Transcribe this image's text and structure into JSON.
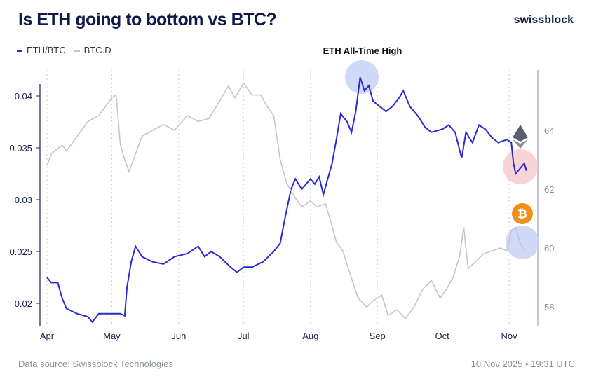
{
  "header": {
    "title": "Is ETH going to bottom vs BTC?",
    "brand": "swissblock"
  },
  "footer": {
    "source": "Data source: Swissblock Technologies",
    "timestamp": "10 Nov 2025 • 19:31 UTC"
  },
  "chart_data": {
    "type": "line",
    "title": "Is ETH going to bottom vs BTC?",
    "annotation": "ETH All-Time High",
    "legend": [
      "ETH/BTC",
      "BTC.D"
    ],
    "legend_position": "top-left",
    "colors": {
      "eth": "#2b2bd1",
      "btcd": "#c2c6d4",
      "ath_circle": "#c7d2f7",
      "eth_circle": "#f8c9cc",
      "btc_circle": "#c7d2f7",
      "btc_icon": "#f0901a",
      "eth_icon": "#5a5e6e"
    },
    "x_ticks": [
      "Apr",
      "May",
      "Jun",
      "Jul",
      "Aug",
      "Sep",
      "Oct",
      "Nov"
    ],
    "y_left": {
      "ticks": [
        "0.02",
        "0.025",
        "0.03",
        "0.035",
        "0.04"
      ],
      "range": [
        0.018,
        0.042
      ]
    },
    "y_right": {
      "ticks": [
        "58",
        "60",
        "62",
        "64"
      ],
      "range": [
        57.5,
        65.8
      ]
    },
    "series": [
      {
        "name": "ETH/BTC",
        "axis": "left",
        "dates": [
          "04-01",
          "04-03",
          "04-06",
          "04-08",
          "04-10",
          "04-15",
          "04-20",
          "04-22",
          "04-25",
          "04-30",
          "05-05",
          "05-07",
          "05-08",
          "05-10",
          "05-12",
          "05-15",
          "05-20",
          "05-25",
          "05-30",
          "06-05",
          "06-10",
          "06-13",
          "06-16",
          "06-20",
          "06-25",
          "06-28",
          "07-01",
          "07-05",
          "07-10",
          "07-15",
          "07-18",
          "07-20",
          "07-23",
          "07-25",
          "07-28",
          "08-01",
          "08-03",
          "08-05",
          "08-07",
          "08-09",
          "08-11",
          "08-13",
          "08-15",
          "08-18",
          "08-20",
          "08-22",
          "08-24",
          "08-26",
          "08-28",
          "08-30",
          "09-02",
          "09-05",
          "09-08",
          "09-11",
          "09-13",
          "09-16",
          "09-20",
          "09-23",
          "09-26",
          "10-01",
          "10-04",
          "10-07",
          "10-10",
          "10-12",
          "10-15",
          "10-18",
          "10-21",
          "10-24",
          "10-27",
          "10-31",
          "11-02",
          "11-03",
          "11-04",
          "11-06",
          "11-08",
          "11-09"
        ],
        "values": [
          0.0225,
          0.022,
          0.022,
          0.0205,
          0.0195,
          0.019,
          0.0187,
          0.0182,
          0.019,
          0.019,
          0.019,
          0.0188,
          0.0215,
          0.024,
          0.0255,
          0.0245,
          0.024,
          0.0238,
          0.0245,
          0.0248,
          0.0255,
          0.0245,
          0.025,
          0.0245,
          0.0235,
          0.023,
          0.0235,
          0.0235,
          0.024,
          0.025,
          0.0258,
          0.028,
          0.031,
          0.032,
          0.031,
          0.032,
          0.0315,
          0.0322,
          0.0305,
          0.032,
          0.0335,
          0.0358,
          0.0383,
          0.0375,
          0.0365,
          0.0385,
          0.0418,
          0.0405,
          0.041,
          0.0395,
          0.039,
          0.0385,
          0.039,
          0.0398,
          0.0405,
          0.039,
          0.038,
          0.037,
          0.0365,
          0.0368,
          0.0372,
          0.0365,
          0.034,
          0.0365,
          0.0355,
          0.0372,
          0.0368,
          0.036,
          0.0355,
          0.0358,
          0.0355,
          0.0335,
          0.0325,
          0.033,
          0.0335,
          0.0328
        ]
      },
      {
        "name": "BTC.D",
        "axis": "right",
        "dates": [
          "04-01",
          "04-03",
          "04-08",
          "04-10",
          "04-15",
          "04-20",
          "04-25",
          "04-28",
          "05-01",
          "05-03",
          "05-05",
          "05-07",
          "05-09",
          "05-12",
          "05-15",
          "05-20",
          "05-25",
          "05-30",
          "06-05",
          "06-10",
          "06-15",
          "06-20",
          "06-24",
          "06-27",
          "07-01",
          "07-05",
          "07-09",
          "07-12",
          "07-15",
          "07-18",
          "07-21",
          "07-25",
          "07-28",
          "08-01",
          "08-04",
          "08-08",
          "08-10",
          "08-13",
          "08-16",
          "08-19",
          "08-23",
          "08-27",
          "08-30",
          "09-03",
          "09-06",
          "09-10",
          "09-14",
          "09-18",
          "09-22",
          "09-26",
          "09-30",
          "10-03",
          "10-06",
          "10-09",
          "10-11",
          "10-13",
          "10-16",
          "10-20",
          "10-24",
          "10-28",
          "10-31",
          "11-02",
          "11-04",
          "11-06",
          "11-08",
          "11-09"
        ],
        "values": [
          62.8,
          63.2,
          63.5,
          63.3,
          63.8,
          64.3,
          64.5,
          64.8,
          65.1,
          65.2,
          63.5,
          63.0,
          62.6,
          63.2,
          63.8,
          64.0,
          64.2,
          64.0,
          64.5,
          64.3,
          64.4,
          65.0,
          65.5,
          65.1,
          65.6,
          65.2,
          65.2,
          64.8,
          64.5,
          63.0,
          62.2,
          61.7,
          61.4,
          61.6,
          61.4,
          61.5,
          61.0,
          60.2,
          59.9,
          59.2,
          58.3,
          58.0,
          58.2,
          58.4,
          57.7,
          57.9,
          57.6,
          58.0,
          58.6,
          58.9,
          58.3,
          58.6,
          59.0,
          59.7,
          60.7,
          59.3,
          59.5,
          59.8,
          59.9,
          60.0,
          59.9,
          60.6,
          60.7,
          60.2,
          59.9,
          59.9
        ]
      }
    ]
  }
}
